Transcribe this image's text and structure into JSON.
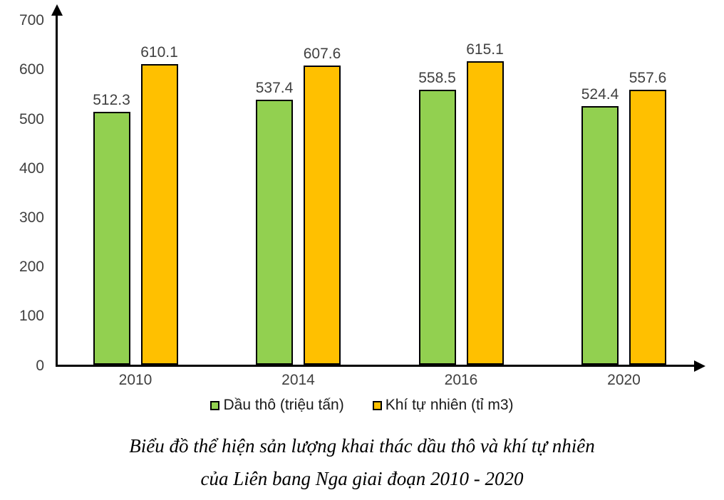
{
  "chart_data": {
    "type": "bar",
    "categories": [
      "2010",
      "2014",
      "2016",
      "2020"
    ],
    "series": [
      {
        "name": "Dầu thô (triệu tấn)",
        "color": "#92D050",
        "values": [
          512.3,
          537.4,
          558.5,
          524.4
        ]
      },
      {
        "name": "Khí tự nhiên (tỉ m3)",
        "color": "#FFC000",
        "values": [
          610.1,
          607.6,
          615.1,
          557.6
        ]
      }
    ],
    "title": "Biểu đồ thể hiện sản lượng khai thác dầu thô và khí tự nhiên của Liên bang Nga giai đoạn 2010 - 2020",
    "xlabel": "",
    "ylabel": "",
    "ylim": [
      0,
      700
    ],
    "yticks": [
      0,
      100,
      200,
      300,
      400,
      500,
      600,
      700
    ],
    "grid": false,
    "legend_position": "bottom",
    "bar_border_color": "#000000",
    "value_labels_shown": true
  },
  "legend": {
    "items": [
      {
        "label": "Dầu thô (triệu tấn)",
        "color": "#92D050"
      },
      {
        "label": "Khí tự nhiên (tỉ m3)",
        "color": "#FFC000"
      }
    ]
  },
  "caption": {
    "line1": "Biểu đồ thể hiện sản lượng khai thác dầu thô và khí tự nhiên",
    "line2": "của Liên bang Nga giai đoạn 2010 - 2020"
  }
}
